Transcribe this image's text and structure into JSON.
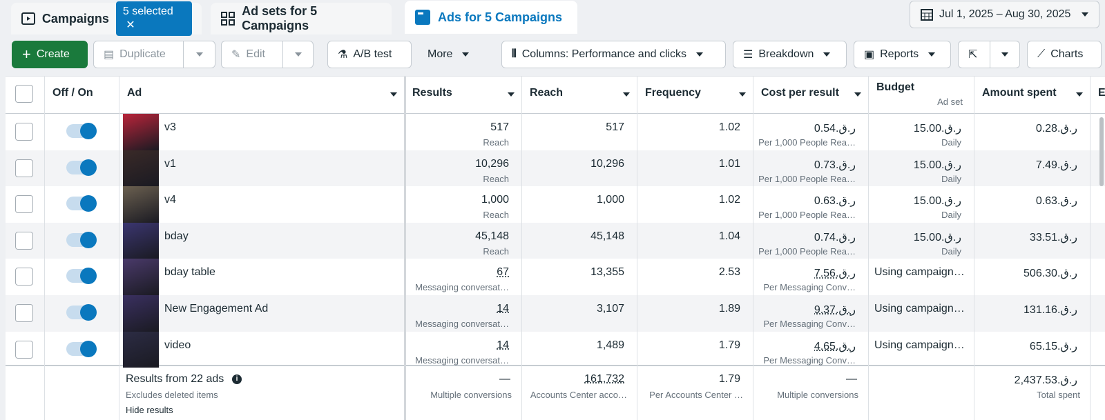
{
  "tabs": [
    {
      "label": "Campaigns",
      "badge": "5 selected"
    },
    {
      "label": "Ad sets for 5 Campaigns"
    },
    {
      "label": "Ads for 5 Campaigns"
    }
  ],
  "date_range": "Jul 1, 2025 – Aug 30, 2025",
  "toolbar": {
    "create": "Create",
    "duplicate": "Duplicate",
    "edit": "Edit",
    "ab_test": "A/B test",
    "more": "More",
    "columns": "Columns: Performance and clicks",
    "breakdown": "Breakdown",
    "reports": "Reports",
    "charts": "Charts"
  },
  "table": {
    "columns": {
      "toggle": "Off / On",
      "ad": "Ad",
      "results": "Results",
      "reach": "Reach",
      "frequency": "Frequency",
      "cost": "Cost per result",
      "budget": "Budget",
      "budget_sub": "Ad set",
      "spent": "Amount spent",
      "extra": "E"
    },
    "rows": [
      {
        "name": "v3",
        "results": "517",
        "results_sub": "Reach",
        "reach": "517",
        "frequency": "1.02",
        "cost": "0.54.ر.ق",
        "cost_sub": "Per 1,000 People Rea…",
        "budget": "15.00.ر.ق",
        "budget_sub": "Daily",
        "spent": "0.28.ر.ق"
      },
      {
        "name": "v1",
        "results": "10,296",
        "results_sub": "Reach",
        "reach": "10,296",
        "frequency": "1.01",
        "cost": "0.73.ر.ق",
        "cost_sub": "Per 1,000 People Rea…",
        "budget": "15.00.ر.ق",
        "budget_sub": "Daily",
        "spent": "7.49.ر.ق"
      },
      {
        "name": "v4",
        "results": "1,000",
        "results_sub": "Reach",
        "reach": "1,000",
        "frequency": "1.02",
        "cost": "0.63.ر.ق",
        "cost_sub": "Per 1,000 People Rea…",
        "budget": "15.00.ر.ق",
        "budget_sub": "Daily",
        "spent": "0.63.ر.ق"
      },
      {
        "name": "bday",
        "results": "45,148",
        "results_sub": "Reach",
        "reach": "45,148",
        "frequency": "1.04",
        "cost": "0.74.ر.ق",
        "cost_sub": "Per 1,000 People Rea…",
        "budget": "15.00.ر.ق",
        "budget_sub": "Daily",
        "spent": "33.51.ر.ق"
      },
      {
        "name": "bday table",
        "results": "67",
        "results_sub": "Messaging conversat…",
        "reach": "13,355",
        "frequency": "2.53",
        "cost": "7.56.ر.ق",
        "cost_sub": "Per Messaging Conv…",
        "budget": "Using campaign…",
        "spent": "506.30.ر.ق"
      },
      {
        "name": "New Engagement Ad",
        "results": "14",
        "results_sub": "Messaging conversat…",
        "reach": "3,107",
        "frequency": "1.89",
        "cost": "9.37.ر.ق",
        "cost_sub": "Per Messaging Conv…",
        "budget": "Using campaign…",
        "spent": "131.16.ر.ق"
      },
      {
        "name": "video",
        "results": "14",
        "results_sub": "Messaging conversat…",
        "reach": "1,489",
        "frequency": "1.79",
        "cost": "4.65.ر.ق",
        "cost_sub": "Per Messaging Conv…",
        "budget": "Using campaign…",
        "spent": "65.15.ر.ق"
      }
    ],
    "footer": {
      "label": "Results from 22 ads",
      "sub": "Excludes deleted items",
      "hide": "Hide results",
      "results": "—",
      "results_sub": "Multiple conversions",
      "reach": "161,732",
      "reach_sub": "Accounts Center acco…",
      "frequency": "1.79",
      "frequency_sub": "Per Accounts Center …",
      "cost": "—",
      "cost_sub": "Multiple conversions",
      "spent": "2,437.53.ر.ق",
      "spent_sub": "Total spent"
    }
  }
}
